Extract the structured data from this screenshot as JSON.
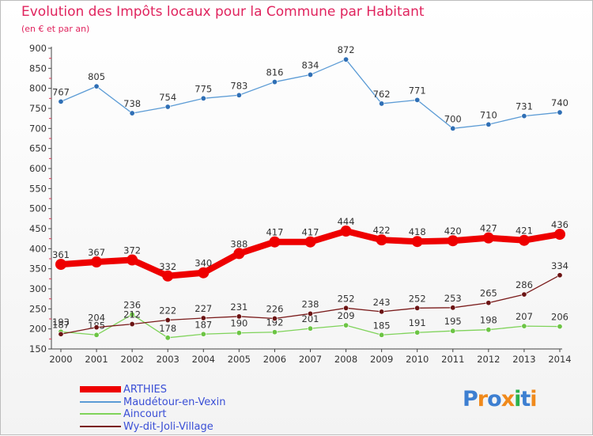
{
  "title": "Evolution des Impôts locaux pour la Commune par Habitant",
  "subtitle": "(en € et par an)",
  "logo": {
    "text": "Proxiti",
    "letters": [
      {
        "ch": "P",
        "color": "#3d7fd1"
      },
      {
        "ch": "r",
        "color": "#f08a1c"
      },
      {
        "ch": "o",
        "color": "#3d7fd1"
      },
      {
        "ch": "x",
        "color": "#f08a1c"
      },
      {
        "ch": "i",
        "color": "#2bb24c"
      },
      {
        "ch": "t",
        "color": "#3d7fd1"
      },
      {
        "ch": "i",
        "color": "#f08a1c"
      }
    ]
  },
  "chart_data": {
    "type": "line",
    "x": [
      2000,
      2001,
      2002,
      2003,
      2004,
      2005,
      2006,
      2007,
      2008,
      2009,
      2010,
      2011,
      2012,
      2013,
      2014
    ],
    "ylim": [
      150,
      900
    ],
    "yticks": [
      150,
      200,
      250,
      300,
      350,
      400,
      450,
      500,
      550,
      600,
      650,
      700,
      750,
      800,
      850,
      900
    ],
    "grid": false,
    "legend_position": "bottom-left",
    "series": [
      {
        "name": "ARTHIES",
        "color": "#ee0000",
        "width": 8,
        "marker": 7,
        "labels": true,
        "values": [
          361,
          367,
          372,
          332,
          340,
          388,
          417,
          417,
          444,
          422,
          418,
          420,
          427,
          421,
          436
        ]
      },
      {
        "name": "Maudétour-en-Vexin",
        "color": "#5b9bd5",
        "marker_color": "#2f6fb5",
        "width": 1.3,
        "marker": 3.2,
        "labels": true,
        "values": [
          767,
          805,
          738,
          754,
          775,
          783,
          816,
          834,
          872,
          762,
          771,
          700,
          710,
          731,
          740
        ]
      },
      {
        "name": "Aincourt",
        "color": "#7fd35a",
        "marker_color": "#6cc444",
        "width": 1.3,
        "marker": 3.2,
        "labels": true,
        "values": [
          193,
          185,
          236,
          178,
          187,
          190,
          192,
          201,
          209,
          185,
          191,
          195,
          198,
          207,
          206
        ]
      },
      {
        "name": "Wy-dit-Joli-Village",
        "color": "#7a1b1b",
        "marker_color": "#6b1414",
        "width": 1.3,
        "marker": 3.2,
        "labels": true,
        "values": [
          187,
          204,
          212,
          222,
          227,
          231,
          226,
          238,
          252,
          243,
          252,
          253,
          265,
          286,
          334
        ]
      }
    ]
  }
}
